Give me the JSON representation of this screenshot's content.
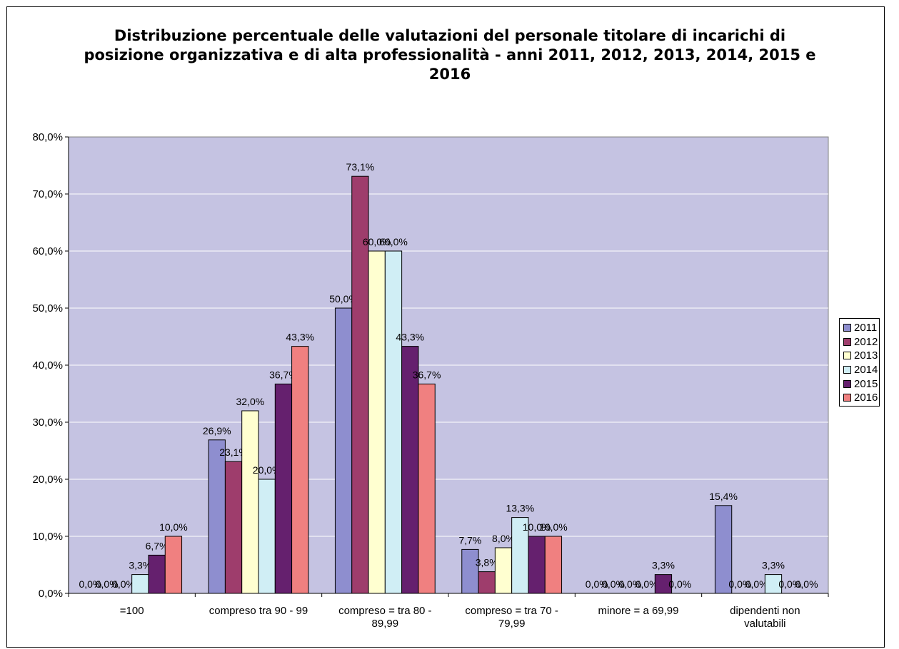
{
  "chart_data": {
    "type": "bar",
    "title": "Distribuzione percentuale delle valutazioni del personale titolare di incarichi di posizione organizzativa e di alta professionalità - anni 2011, 2012, 2013, 2014, 2015 e 2016",
    "categories": [
      "=100",
      "compreso tra 90 - 99",
      "compreso = tra 80 - 89,99",
      "compreso = tra 70 - 79,99",
      "minore = a 69,99",
      "dipendenti non valutabili"
    ],
    "series": [
      {
        "name": "2011",
        "color": "#8E8ECF",
        "values": [
          0.0,
          26.9,
          50.0,
          7.7,
          0.0,
          15.4
        ],
        "labels": [
          "0,0%",
          "26,9%",
          "50,0%",
          "7,7%",
          "0,0%",
          "15,4%"
        ]
      },
      {
        "name": "2012",
        "color": "#9E3D6C",
        "values": [
          0.0,
          23.1,
          73.1,
          3.8,
          0.0,
          0.0
        ],
        "labels": [
          "0,0%",
          "23,1%",
          "73,1%",
          "3,8%",
          "0,0%",
          "0,0%"
        ]
      },
      {
        "name": "2013",
        "color": "#FFFFD0",
        "values": [
          0.0,
          32.0,
          60.0,
          8.0,
          0.0,
          0.0
        ],
        "labels": [
          "0,0%",
          "32,0%",
          "60,0%",
          "8,0%",
          "0,0%",
          "0,0%"
        ]
      },
      {
        "name": "2014",
        "color": "#D0EEF5",
        "values": [
          3.3,
          20.0,
          60.0,
          13.3,
          0.0,
          3.3
        ],
        "labels": [
          "3,3%",
          "20,0%",
          "60,0%",
          "13,3%",
          "0,0%",
          "3,3%"
        ]
      },
      {
        "name": "2015",
        "color": "#65206E",
        "values": [
          6.7,
          36.7,
          43.3,
          10.0,
          3.3,
          0.0
        ],
        "labels": [
          "6,7%",
          "36,7%",
          "43,3%",
          "10,0%",
          "3,3%",
          "0,0%"
        ]
      },
      {
        "name": "2016",
        "color": "#F08080",
        "values": [
          10.0,
          43.3,
          36.7,
          10.0,
          0.0,
          0.0
        ],
        "labels": [
          "10,0%",
          "43,3%",
          "36,7%",
          "10,0%",
          "0,0%",
          "0,0%"
        ]
      }
    ],
    "y_ticks": [
      "0,0%",
      "10,0%",
      "20,0%",
      "30,0%",
      "40,0%",
      "50,0%",
      "60,0%",
      "70,0%",
      "80,0%"
    ],
    "ylim": [
      0,
      80
    ],
    "plot_background": "#C5C3E2",
    "grid": true,
    "legend_position": "right"
  }
}
